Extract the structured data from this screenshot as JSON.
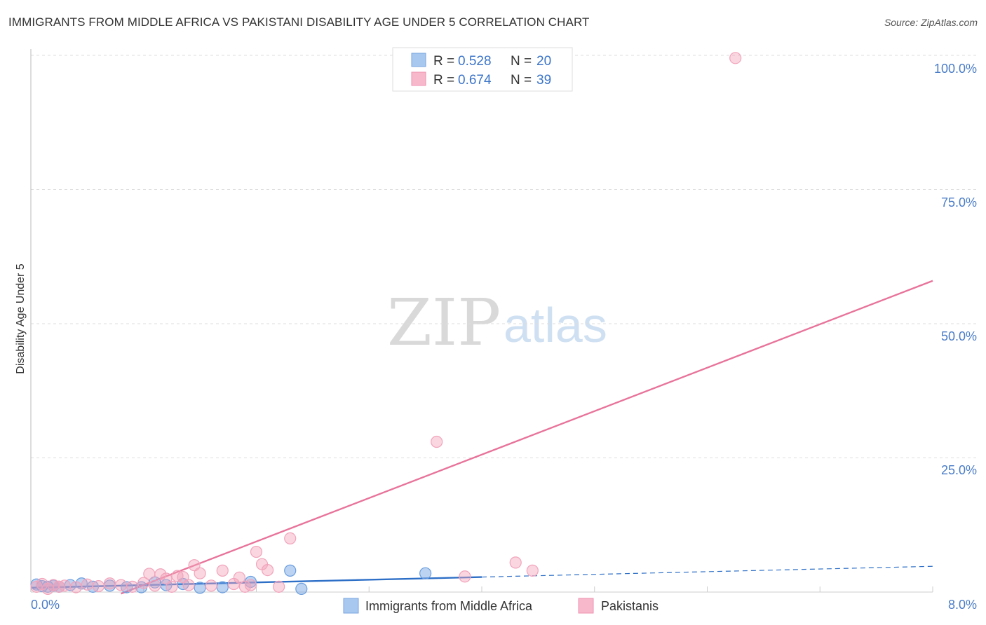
{
  "title": "IMMIGRANTS FROM MIDDLE AFRICA VS PAKISTANI DISABILITY AGE UNDER 5 CORRELATION CHART",
  "source": "Source: ZipAtlas.com",
  "watermark": {
    "zip": "ZIP",
    "atlas": "atlas"
  },
  "legend": {
    "rows": [
      {
        "r_label": "R = ",
        "r_value": "0.528",
        "n_label": "N = ",
        "n_value": "20",
        "color": "#a8c8f0"
      },
      {
        "r_label": "R = ",
        "r_value": "0.674",
        "n_label": "N = ",
        "n_value": "39",
        "color": "#f7b8cc"
      }
    ]
  },
  "chart_data": {
    "type": "scatter",
    "ylabel": "Disability Age Under 5",
    "x_ticks": [
      "0.0%",
      "8.0%"
    ],
    "y_ticks": [
      "100.0%",
      "75.0%",
      "50.0%",
      "25.0%"
    ],
    "xlim": [
      0,
      8
    ],
    "ylim": [
      0,
      100
    ],
    "grid": true,
    "legend_position": "top-center",
    "series": [
      {
        "name": "Immigrants from Middle Africa",
        "color": "#6a9ee0",
        "line_color": "#2d6fc7",
        "points": [
          [
            0.05,
            1.4
          ],
          [
            0.1,
            1.1
          ],
          [
            0.15,
            1.0
          ],
          [
            0.2,
            1.2
          ],
          [
            0.25,
            1.0
          ],
          [
            0.35,
            1.3
          ],
          [
            0.45,
            1.6
          ],
          [
            0.55,
            1.0
          ],
          [
            0.7,
            1.2
          ],
          [
            0.85,
            0.9
          ],
          [
            0.98,
            0.9
          ],
          [
            1.1,
            1.8
          ],
          [
            1.2,
            1.3
          ],
          [
            1.35,
            1.5
          ],
          [
            1.5,
            0.8
          ],
          [
            1.7,
            0.9
          ],
          [
            1.95,
            1.9
          ],
          [
            2.3,
            4.0
          ],
          [
            2.4,
            0.6
          ],
          [
            3.5,
            3.5
          ]
        ],
        "trend": {
          "x": [
            0.0,
            4.0
          ],
          "y": [
            0.8,
            2.8
          ]
        },
        "trend_ext": {
          "x": [
            4.0,
            8.0
          ],
          "y": [
            2.8,
            4.8
          ]
        }
      },
      {
        "name": "Pakistanis",
        "color": "#f2a3bb",
        "line_color": "#e8739a",
        "points": [
          [
            0.05,
            1.0
          ],
          [
            0.1,
            1.5
          ],
          [
            0.15,
            0.6
          ],
          [
            0.2,
            1.3
          ],
          [
            0.25,
            1.0
          ],
          [
            0.3,
            1.2
          ],
          [
            0.4,
            0.9
          ],
          [
            0.5,
            1.4
          ],
          [
            0.6,
            1.1
          ],
          [
            0.7,
            1.6
          ],
          [
            0.8,
            1.3
          ],
          [
            0.9,
            1.0
          ],
          [
            1.0,
            1.7
          ],
          [
            1.05,
            3.4
          ],
          [
            1.1,
            1.2
          ],
          [
            1.15,
            3.3
          ],
          [
            1.2,
            2.5
          ],
          [
            1.25,
            1.0
          ],
          [
            1.3,
            3.0
          ],
          [
            1.35,
            2.8
          ],
          [
            1.4,
            1.3
          ],
          [
            1.45,
            5.0
          ],
          [
            1.5,
            3.5
          ],
          [
            1.6,
            1.2
          ],
          [
            1.7,
            4.0
          ],
          [
            1.8,
            1.5
          ],
          [
            1.85,
            2.7
          ],
          [
            1.9,
            1.0
          ],
          [
            1.95,
            1.3
          ],
          [
            2.0,
            7.5
          ],
          [
            2.05,
            5.2
          ],
          [
            2.1,
            4.1
          ],
          [
            2.2,
            1.0
          ],
          [
            2.3,
            10.0
          ],
          [
            3.6,
            28.0
          ],
          [
            3.85,
            2.9
          ],
          [
            4.3,
            5.5
          ],
          [
            4.45,
            4.0
          ],
          [
            6.25,
            99.5
          ]
        ],
        "trend": {
          "x": [
            0.8,
            8.0
          ],
          "y": [
            -0.3,
            58.0
          ]
        }
      }
    ]
  },
  "bottom_legend": [
    {
      "label": "Immigrants from Middle Africa",
      "color": "#a8c8f0"
    },
    {
      "label": "Pakistanis",
      "color": "#f7b8cc"
    }
  ]
}
